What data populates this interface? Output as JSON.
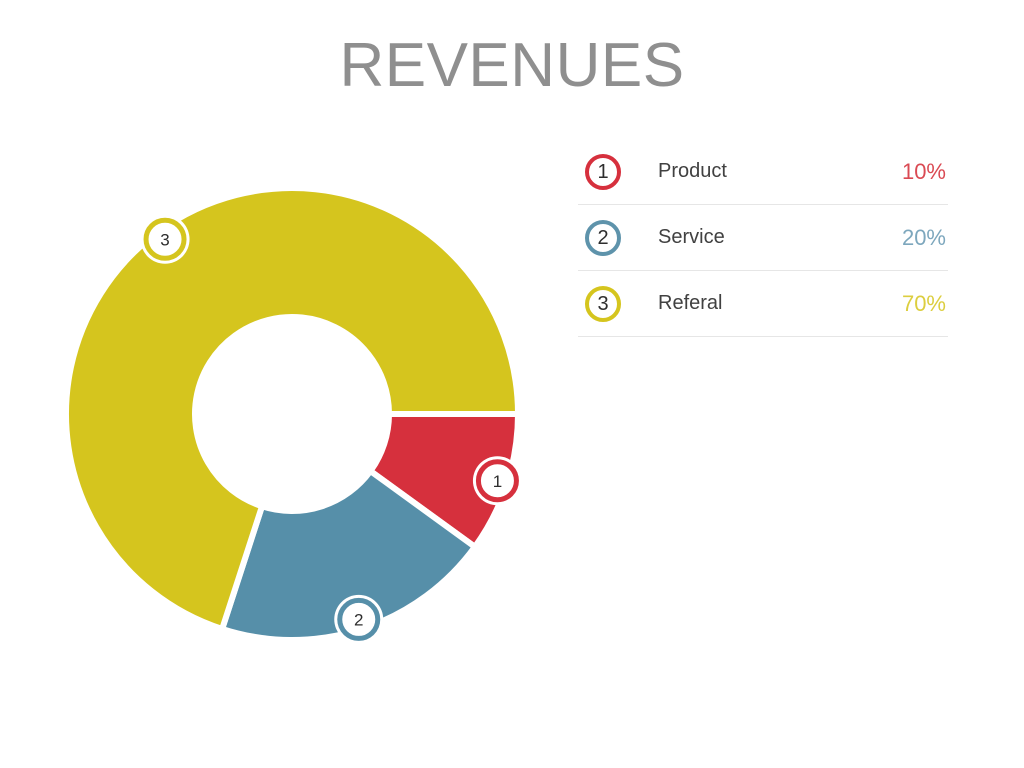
{
  "title": "REVENUES",
  "chart_data": {
    "type": "pie",
    "subtype": "donut",
    "title": "REVENUES",
    "categories": [
      "Product",
      "Service",
      "Referal"
    ],
    "values": [
      10,
      20,
      70
    ],
    "unit": "%",
    "marker_numbers": [
      "1",
      "2",
      "3"
    ],
    "colors": [
      "#d6303d",
      "#568fa9",
      "#d5c51e"
    ],
    "start_angle_deg": 0,
    "direction": "clockwise",
    "donut_hole_ratio": 0.45,
    "legend_position": "right",
    "grid": false
  },
  "legend": {
    "items": [
      {
        "number": "1",
        "label": "Product",
        "value": "10%",
        "ring_color": "#d6303d",
        "value_color": "#da4a53"
      },
      {
        "number": "2",
        "label": "Service",
        "value": "20%",
        "ring_color": "#5e93ab",
        "value_color": "#7da7bd"
      },
      {
        "number": "3",
        "label": "Referal",
        "value": "70%",
        "ring_color": "#d5c51e",
        "value_color": "#dcce3f"
      }
    ]
  },
  "styles": {
    "background": "#ffffff",
    "title_color": "#8f8f8f",
    "label_color": "#414141",
    "number_color": "#2e2e2e",
    "divider_color": "#e6e6e6",
    "segment_gap_color": "#ffffff"
  }
}
